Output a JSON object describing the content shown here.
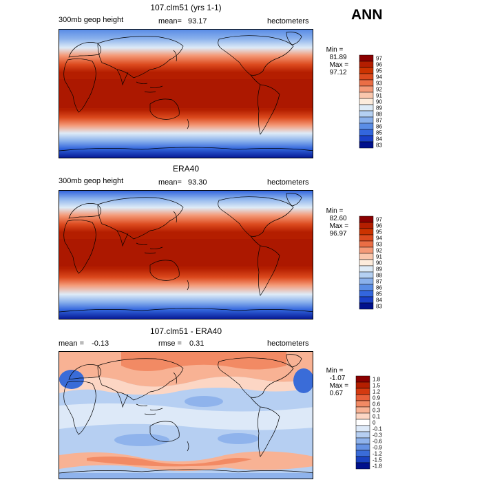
{
  "season": "ANN",
  "panels": [
    {
      "title": "107.clm51 (yrs 1-1)",
      "left_label": "300mb geop height",
      "mean_label": "mean=",
      "mean_value": "93.17",
      "units": "hectometers",
      "min_label": "Min =",
      "min_value": "81.89",
      "max_label": "Max =",
      "max_value": "97.12",
      "levels": [
        "97",
        "96",
        "95",
        "94",
        "93",
        "92",
        "91",
        "90",
        "89",
        "88",
        "87",
        "86",
        "85",
        "84",
        "83"
      ],
      "colors": [
        "#8b0000",
        "#b41e00",
        "#cc3300",
        "#dc4a1e",
        "#ea6e45",
        "#f49a78",
        "#fac7ad",
        "#fdecdc",
        "#deebf7",
        "#b4d0f2",
        "#8ab1ec",
        "#5a8de6",
        "#3366dd",
        "#1a40c8",
        "#00108c"
      ]
    },
    {
      "title": "ERA40",
      "left_label": "300mb geop height",
      "mean_label": "mean=",
      "mean_value": "93.30",
      "units": "hectometers",
      "min_label": "Min =",
      "min_value": "82.60",
      "max_label": "Max =",
      "max_value": "96.97",
      "levels": [
        "97",
        "96",
        "95",
        "94",
        "93",
        "92",
        "91",
        "90",
        "89",
        "88",
        "87",
        "86",
        "85",
        "84",
        "83"
      ],
      "colors": [
        "#8b0000",
        "#b41e00",
        "#cc3300",
        "#dc4a1e",
        "#ea6e45",
        "#f49a78",
        "#fac7ad",
        "#fdecdc",
        "#deebf7",
        "#b4d0f2",
        "#8ab1ec",
        "#5a8de6",
        "#3366dd",
        "#1a40c8",
        "#00108c"
      ]
    },
    {
      "title": "107.clm51 - ERA40",
      "left_label": "mean =",
      "mean_value": "-0.13",
      "rmse_label": "rmse =",
      "rmse_value": "0.31",
      "units": "hectometers",
      "min_label": "Min =",
      "min_value": "-1.07",
      "max_label": "Max =",
      "max_value": "0.67",
      "levels": [
        "1.8",
        "1.5",
        "1.2",
        "0.9",
        "0.6",
        "0.3",
        "0.1",
        "0",
        "-0.1",
        "-0.3",
        "-0.6",
        "-0.9",
        "-1.2",
        "-1.5",
        "-1.8"
      ],
      "colors": [
        "#8b0000",
        "#b41e00",
        "#d43a10",
        "#e8603a",
        "#f28a64",
        "#f8b294",
        "#fcd6c4",
        "#ffffff",
        "#dde9f8",
        "#b6cff2",
        "#8fb3ec",
        "#6592e4",
        "#3a6cd8",
        "#1a42c0",
        "#00108c"
      ]
    }
  ]
}
